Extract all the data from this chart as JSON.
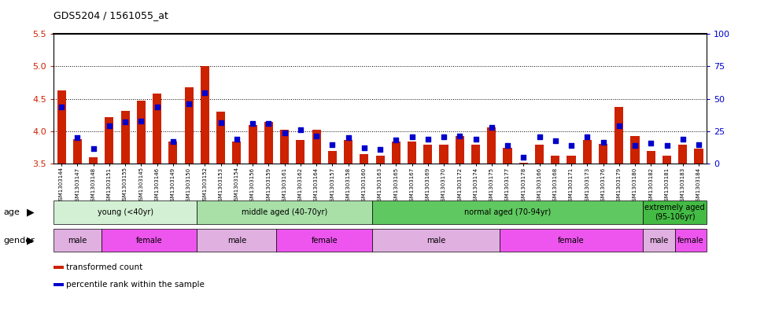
{
  "title": "GDS5204 / 1561055_at",
  "samples": [
    "GSM1303144",
    "GSM1303147",
    "GSM1303148",
    "GSM1303151",
    "GSM1303155",
    "GSM1303145",
    "GSM1303146",
    "GSM1303149",
    "GSM1303150",
    "GSM1303152",
    "GSM1303153",
    "GSM1303154",
    "GSM1303156",
    "GSM1303159",
    "GSM1303161",
    "GSM1303162",
    "GSM1303164",
    "GSM1303157",
    "GSM1303158",
    "GSM1303160",
    "GSM1303163",
    "GSM1303165",
    "GSM1303167",
    "GSM1303169",
    "GSM1303170",
    "GSM1303172",
    "GSM1303174",
    "GSM1303175",
    "GSM1303177",
    "GSM1303178",
    "GSM1303166",
    "GSM1303168",
    "GSM1303171",
    "GSM1303173",
    "GSM1303176",
    "GSM1303179",
    "GSM1303180",
    "GSM1303182",
    "GSM1303181",
    "GSM1303183",
    "GSM1303184"
  ],
  "red_values": [
    4.63,
    3.88,
    3.6,
    4.22,
    4.31,
    4.47,
    4.58,
    3.84,
    4.68,
    5.0,
    4.3,
    3.84,
    4.1,
    4.14,
    4.02,
    3.87,
    4.02,
    3.7,
    3.87,
    3.65,
    3.63,
    3.84,
    3.84,
    3.79,
    3.79,
    3.93,
    3.8,
    4.06,
    3.74,
    3.52,
    3.79,
    3.62,
    3.62,
    3.87,
    3.81,
    4.37,
    3.93,
    3.7,
    3.62,
    3.79,
    3.73
  ],
  "blue_values": [
    4.38,
    3.9,
    3.73,
    4.09,
    4.14,
    4.16,
    4.38,
    3.84,
    4.43,
    4.6,
    4.13,
    3.88,
    4.12,
    4.12,
    3.98,
    4.03,
    3.93,
    3.8,
    3.9,
    3.75,
    3.72,
    3.87,
    3.92,
    3.88,
    3.92,
    3.93,
    3.88,
    4.06,
    3.78,
    3.6,
    3.92,
    3.85,
    3.78,
    3.92,
    3.83,
    4.08,
    3.78,
    3.82,
    3.78,
    3.88,
    3.8
  ],
  "ylim_left": [
    3.5,
    5.5
  ],
  "ylim_right": [
    0,
    100
  ],
  "yticks_left": [
    3.5,
    4.0,
    4.5,
    5.0,
    5.5
  ],
  "yticks_right": [
    0,
    25,
    50,
    75,
    100
  ],
  "grid_values": [
    4.0,
    4.5,
    5.0
  ],
  "age_groups": [
    {
      "label": "young (<40yr)",
      "start": 0,
      "end": 9,
      "color": "#d4f0d4"
    },
    {
      "label": "middle aged (40-70yr)",
      "start": 9,
      "end": 20,
      "color": "#a8e0a8"
    },
    {
      "label": "normal aged (70-94yr)",
      "start": 20,
      "end": 37,
      "color": "#60c860"
    },
    {
      "label": "extremely aged\n(95-106yr)",
      "start": 37,
      "end": 41,
      "color": "#44bb44"
    }
  ],
  "gender_groups": [
    {
      "label": "male",
      "start": 0,
      "end": 3,
      "color": "#e0b0e0"
    },
    {
      "label": "female",
      "start": 3,
      "end": 9,
      "color": "#ee55ee"
    },
    {
      "label": "male",
      "start": 9,
      "end": 14,
      "color": "#e0b0e0"
    },
    {
      "label": "female",
      "start": 14,
      "end": 20,
      "color": "#ee55ee"
    },
    {
      "label": "male",
      "start": 20,
      "end": 28,
      "color": "#e0b0e0"
    },
    {
      "label": "female",
      "start": 28,
      "end": 37,
      "color": "#ee55ee"
    },
    {
      "label": "male",
      "start": 37,
      "end": 39,
      "color": "#e0b0e0"
    },
    {
      "label": "female",
      "start": 39,
      "end": 41,
      "color": "#ee55ee"
    }
  ],
  "bar_color": "#cc2200",
  "dot_color": "#0000cc",
  "left_axis_color": "#cc2200",
  "right_axis_color": "#0000cc"
}
